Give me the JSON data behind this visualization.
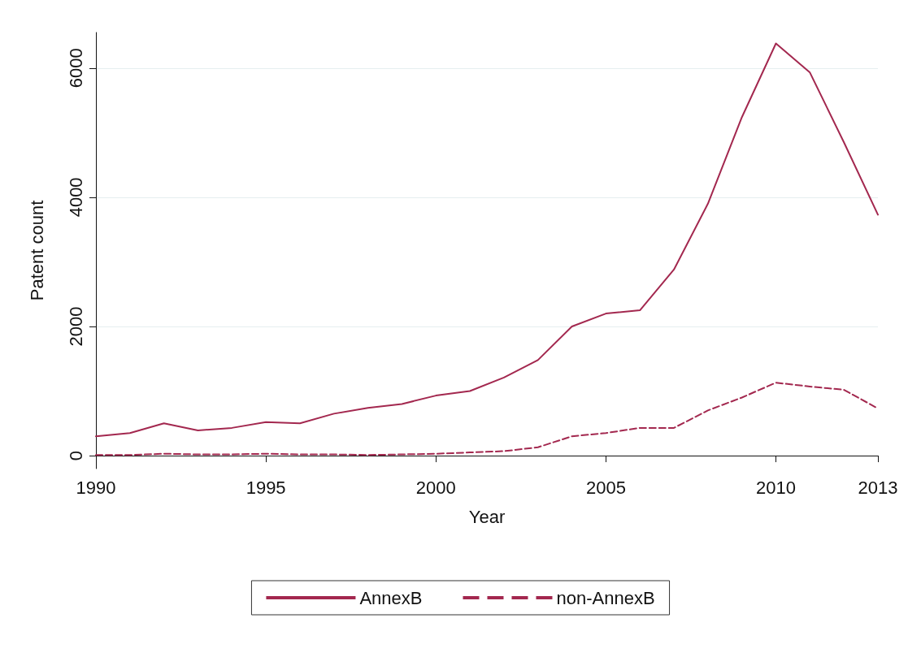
{
  "chart_data": {
    "type": "line",
    "xlabel": "Year",
    "ylabel": "Patent count",
    "x": [
      1990,
      1991,
      1992,
      1993,
      1994,
      1995,
      1996,
      1997,
      1998,
      1999,
      2000,
      2001,
      2002,
      2003,
      2004,
      2005,
      2006,
      2007,
      2008,
      2009,
      2010,
      2011,
      2012,
      2013
    ],
    "series": [
      {
        "name": "AnnexB",
        "color": "#a3284f",
        "line_style": "solid",
        "values": [
          300,
          350,
          500,
          390,
          430,
          520,
          500,
          650,
          740,
          800,
          930,
          1000,
          1210,
          1480,
          2000,
          2200,
          2250,
          2880,
          3900,
          5240,
          6380,
          5930,
          4850,
          3730
        ]
      },
      {
        "name": "non-AnnexB",
        "color": "#a3284f",
        "line_style": "dashed",
        "values": [
          10,
          10,
          30,
          20,
          20,
          30,
          20,
          20,
          10,
          20,
          30,
          50,
          70,
          130,
          300,
          350,
          430,
          430,
          700,
          900,
          1130,
          1070,
          1020,
          730
        ]
      }
    ],
    "xlim": [
      1990,
      2013
    ],
    "xticks": [
      1990,
      1995,
      2000,
      2005,
      2010,
      2013
    ],
    "ylim": [
      -200,
      6550
    ],
    "yticks": [
      0,
      2000,
      4000,
      6000
    ],
    "grid": "y",
    "legend": "bottom",
    "marker": "none"
  }
}
